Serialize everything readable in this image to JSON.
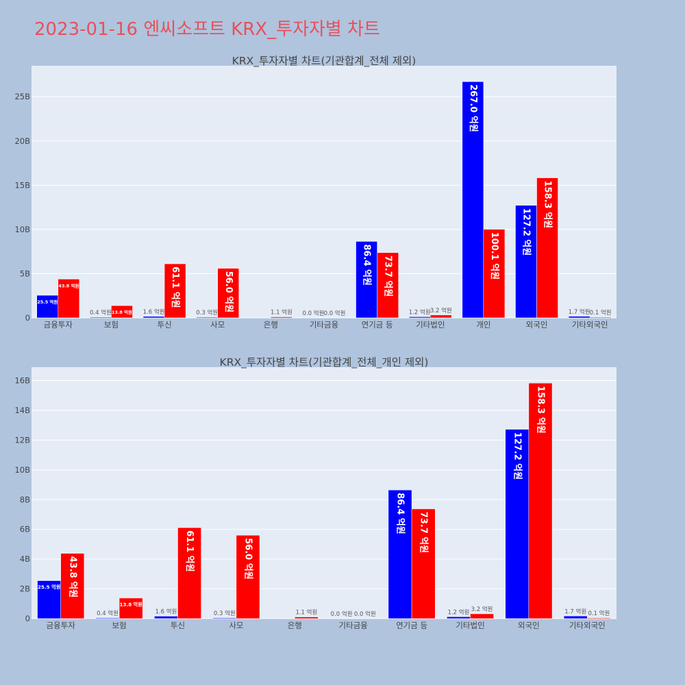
{
  "page": {
    "title": "2023-01-16 엔씨소프트 KRX_투자자별 차트"
  },
  "colors": {
    "background": "#b0c4de",
    "plot_background": "#e5ecf6",
    "grid": "#ffffff",
    "title": "#e8505b",
    "series_a": "#0000ff",
    "series_b": "#ff0000"
  },
  "chart_data": [
    {
      "type": "bar",
      "title": "KRX_투자자별 차트(기관합계_전체 제외)",
      "categories": [
        "금융투자",
        "보험",
        "투신",
        "사모",
        "은행",
        "기타금융",
        "연기금 등",
        "기타법인",
        "개인",
        "외국인",
        "기타외국인"
      ],
      "series": [
        {
          "color": "#0000ff",
          "values": [
            2.55,
            0.04,
            0.16,
            0.03,
            0.0,
            0.0,
            8.64,
            0.12,
            26.7,
            12.72,
            0.17
          ],
          "labels": [
            "25.5 억원",
            "0.4 억원",
            "1.6 억원",
            "0.3 억원",
            "",
            "0.0 억원",
            "86.4 억원",
            "1.2 억원",
            "267.0 억원",
            "127.2 억원",
            "1.7 억원"
          ]
        },
        {
          "color": "#ff0000",
          "values": [
            4.38,
            1.38,
            6.11,
            5.6,
            0.11,
            0.0,
            7.37,
            0.32,
            10.01,
            15.83,
            0.01
          ],
          "labels": [
            "43.8 억원",
            "13.8 억원",
            "61.1 억원",
            "56.0 억원",
            "1.1 억원",
            "0.0 억원",
            "73.7 억원",
            "3.2 억원",
            "100.1 억원",
            "158.3 억원",
            "0.1 억원"
          ]
        }
      ],
      "ylim": [
        0,
        28.5
      ],
      "yticks": [
        0,
        5,
        10,
        15,
        20,
        25
      ],
      "ytick_labels": [
        "0",
        "5B",
        "10B",
        "15B",
        "20B",
        "25B"
      ],
      "grid": true,
      "legend": "none"
    },
    {
      "type": "bar",
      "title": "KRX_투자자별 차트(기관합계_전체_개인 제외)",
      "categories": [
        "금융투자",
        "보험",
        "투신",
        "사모",
        "은행",
        "기타금융",
        "연기금 등",
        "기타법인",
        "외국인",
        "기타외국인"
      ],
      "series": [
        {
          "color": "#0000ff",
          "values": [
            2.55,
            0.04,
            0.16,
            0.03,
            0.0,
            0.0,
            8.64,
            0.12,
            12.72,
            0.17
          ],
          "labels": [
            "25.5 억원",
            "0.4 억원",
            "1.6 억원",
            "0.3 억원",
            "",
            "0.0 억원",
            "86.4 억원",
            "1.2 억원",
            "127.2 억원",
            "1.7 억원"
          ]
        },
        {
          "color": "#ff0000",
          "values": [
            4.38,
            1.38,
            6.11,
            5.6,
            0.11,
            0.0,
            7.37,
            0.32,
            15.83,
            0.01
          ],
          "labels": [
            "43.8 억원",
            "13.8 억원",
            "61.1 억원",
            "56.0 억원",
            "1.1 억원",
            "0.0 억원",
            "73.7 억원",
            "3.2 억원",
            "158.3 억원",
            "0.1 억원"
          ]
        }
      ],
      "ylim": [
        0,
        16.9
      ],
      "yticks": [
        0,
        2,
        4,
        6,
        8,
        10,
        12,
        14,
        16
      ],
      "ytick_labels": [
        "0",
        "2B",
        "4B",
        "6B",
        "8B",
        "10B",
        "12B",
        "14B",
        "16B"
      ],
      "grid": true,
      "legend": "none"
    }
  ]
}
